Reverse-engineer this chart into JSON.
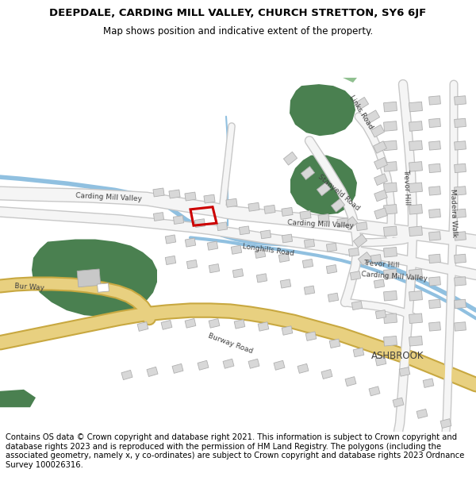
{
  "title": "DEEPDALE, CARDING MILL VALLEY, CHURCH STRETTON, SY6 6JF",
  "subtitle": "Map shows position and indicative extent of the property.",
  "footer": "Contains OS data © Crown copyright and database right 2021. This information is subject to Crown copyright and database rights 2023 and is reproduced with the permission of HM Land Registry. The polygons (including the associated geometry, namely x, y co-ordinates) are subject to Crown copyright and database rights 2023 Ordnance Survey 100026316.",
  "title_fontsize": 9.5,
  "subtitle_fontsize": 8.5,
  "footer_fontsize": 7.2,
  "map_bg": "#ffffff",
  "road_fill": "#f5f5f5",
  "road_edge": "#c8c8c8",
  "yellow_road_fill": "#e8d080",
  "yellow_road_edge": "#c8a840",
  "river_color": "#90c0e0",
  "green_dark": "#4a8050",
  "green_light": "#90c090",
  "building_fill": "#d8d8d8",
  "building_edge": "#b0b0b0",
  "red_plot": "#cc0000",
  "text_color": "#404040"
}
